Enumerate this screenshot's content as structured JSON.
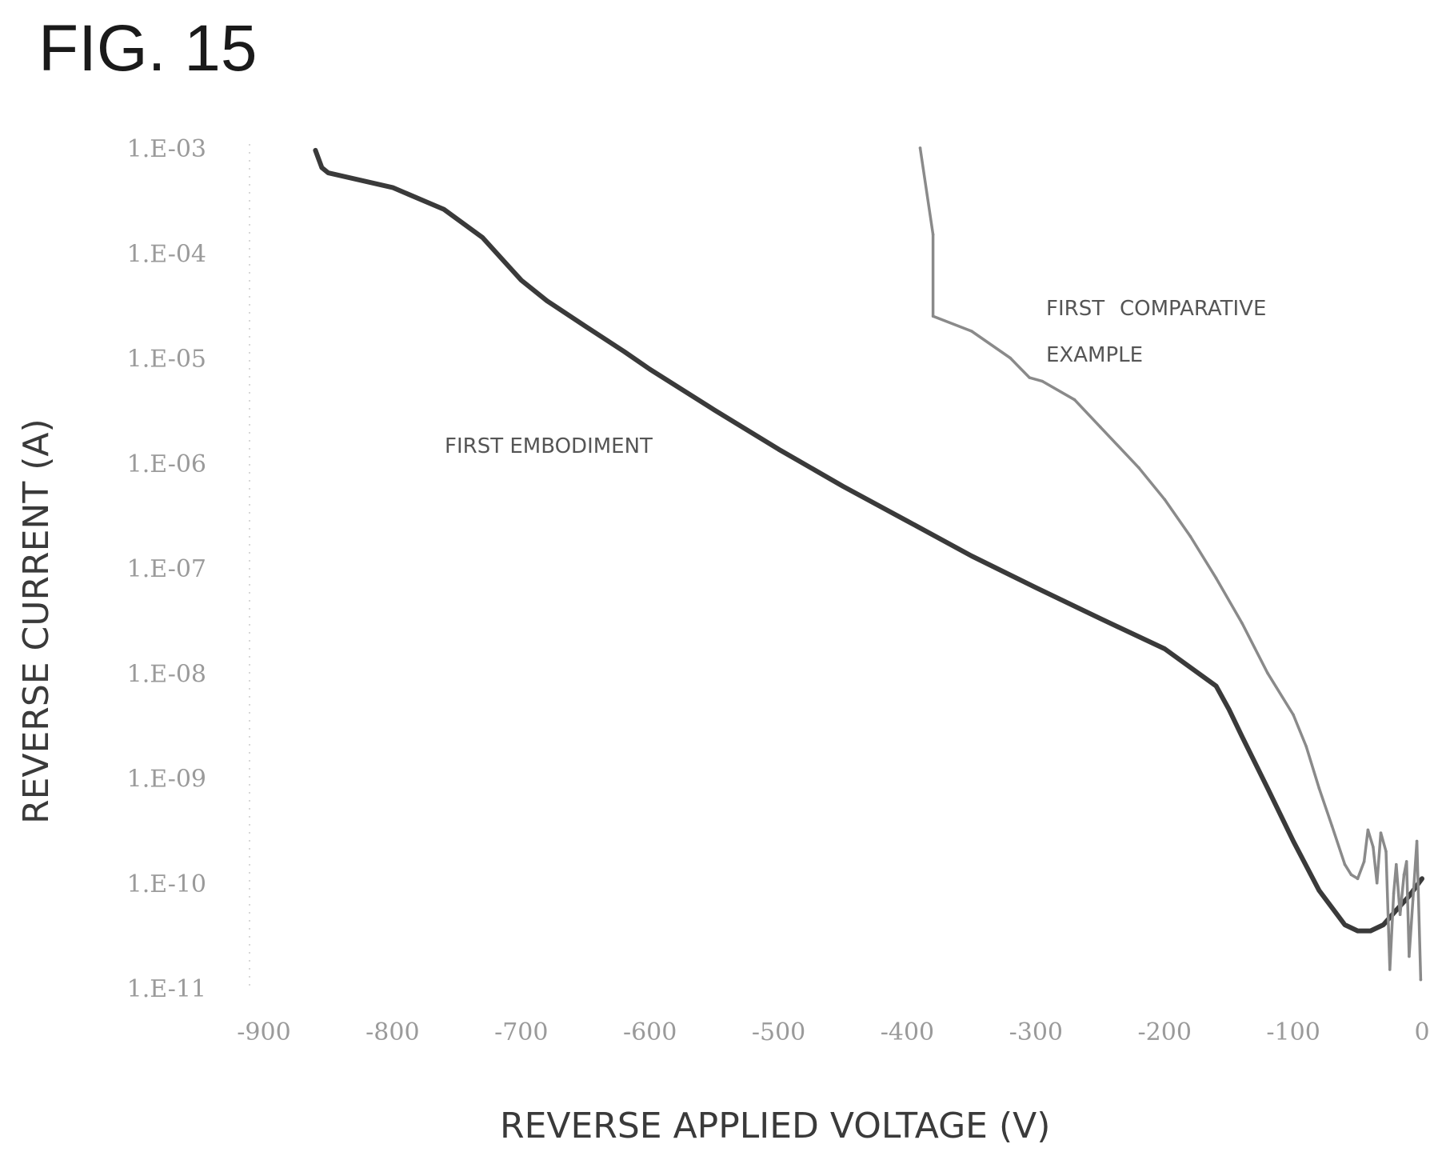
{
  "figure": {
    "title": "FIG. 15"
  },
  "chart_data": {
    "type": "line",
    "title": "FIG. 15",
    "xlabel": "REVERSE APPLIED VOLTAGE (V)",
    "ylabel": "REVERSE CURRENT (A)",
    "xlim": [
      -900,
      0
    ],
    "ylim": [
      1e-11,
      0.001
    ],
    "y_scale": "log",
    "grid": false,
    "x_ticks": [
      "-900",
      "-800",
      "-700",
      "-600",
      "-500",
      "-400",
      "-300",
      "-200",
      "-100",
      "0"
    ],
    "x_tick_values": [
      -900,
      -800,
      -700,
      -600,
      -500,
      -400,
      -300,
      -200,
      -100,
      0
    ],
    "y_ticks": [
      "1.E-03",
      "1.E-04",
      "1.E-05",
      "1.E-06",
      "1.E-07",
      "1.E-08",
      "1.E-09",
      "1.E-10",
      "1.E-11"
    ],
    "y_tick_values": [
      0.001,
      0.0001,
      1e-05,
      1e-06,
      1e-07,
      1e-08,
      1e-09,
      1e-10,
      1e-11
    ],
    "series": [
      {
        "name": "FIRST EMBODIMENT",
        "color": "#3a3a3a",
        "x": [
          -860,
          -855,
          -850,
          -800,
          -760,
          -730,
          -710,
          -700,
          -680,
          -650,
          -620,
          -600,
          -550,
          -500,
          -450,
          -400,
          -350,
          -300,
          -250,
          -200,
          -160,
          -150,
          -140,
          -120,
          -100,
          -80,
          -60,
          -50,
          -40,
          -30,
          -20,
          -10,
          0
        ],
        "y": [
          0.00095,
          0.00065,
          0.00058,
          0.00042,
          0.00026,
          0.00014,
          7.5e-05,
          5.5e-05,
          3.5e-05,
          2e-05,
          1.15e-05,
          7.8e-06,
          3.2e-06,
          1.35e-06,
          6e-07,
          2.8e-07,
          1.3e-07,
          6.5e-08,
          3.3e-08,
          1.7e-08,
          7.5e-09,
          4.5e-09,
          2.5e-09,
          8e-10,
          2.5e-10,
          8.5e-11,
          4e-11,
          3.5e-11,
          3.5e-11,
          4e-11,
          5.5e-11,
          7.5e-11,
          1.1e-10
        ]
      },
      {
        "name": "FIRST COMPARATIVE EXAMPLE",
        "color": "#8a8a8a",
        "x": [
          -390,
          -380,
          -380,
          -350,
          -320,
          -305,
          -295,
          -270,
          -250,
          -220,
          -200,
          -180,
          -160,
          -140,
          -120,
          -100,
          -90,
          -80,
          -70,
          -60,
          -55,
          -50,
          -45,
          -42,
          -38,
          -35,
          -32,
          -28,
          -25,
          -22,
          -20,
          -17,
          -14,
          -12,
          -10,
          -7,
          -4,
          -1
        ],
        "y": [
          0.001,
          0.00015,
          2.5e-05,
          1.8e-05,
          1e-05,
          6.5e-06,
          6e-06,
          4e-06,
          2.2e-06,
          9e-07,
          4.5e-07,
          2e-07,
          8e-08,
          3e-08,
          1e-08,
          4e-09,
          2e-09,
          8e-10,
          3.5e-10,
          1.5e-10,
          1.2e-10,
          1.1e-10,
          1.6e-10,
          3.2e-10,
          2.2e-10,
          1e-10,
          3e-10,
          2e-10,
          1.5e-11,
          8e-11,
          1.5e-10,
          5e-11,
          1.2e-10,
          1.6e-10,
          2e-11,
          7e-11,
          2.5e-10,
          1.2e-11
        ]
      }
    ],
    "annotations": [
      {
        "text": "FIRST EMBODIMENT",
        "series": 0,
        "x": -615,
        "y": 1.02e-06
      },
      {
        "text": "FIRST",
        "series": 1,
        "x": -190,
        "y": 2.3e-05
      },
      {
        "text": "COMPARATIVE",
        "series": 1,
        "x": -190,
        "y": 2.3e-05
      },
      {
        "text": "EXAMPLE",
        "series": 1,
        "x": -270,
        "y": 8.3e-06
      }
    ]
  }
}
